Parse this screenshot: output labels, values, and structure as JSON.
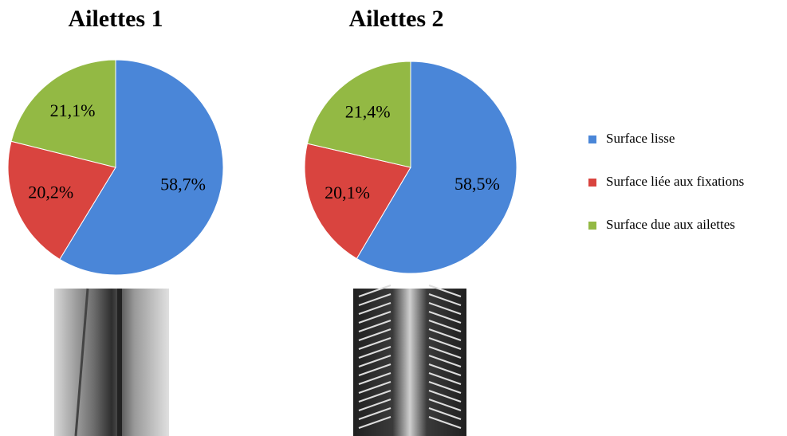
{
  "chart_data": [
    {
      "type": "pie",
      "title": "Ailettes 1",
      "categories": [
        "Surface lisse",
        "Surface liée aux fixations",
        "Surface due aux ailettes"
      ],
      "values": [
        58.7,
        20.2,
        21.1
      ],
      "value_labels": [
        "58,7%",
        "20,2%",
        "21,1%"
      ],
      "colors": [
        "#4a86d8",
        "#d9443f",
        "#93b944"
      ]
    },
    {
      "type": "pie",
      "title": "Ailettes 2",
      "categories": [
        "Surface lisse",
        "Surface liée aux fixations",
        "Surface due aux ailettes"
      ],
      "values": [
        58.5,
        20.1,
        21.4
      ],
      "value_labels": [
        "58,5%",
        "20,1%",
        "21,4%"
      ],
      "colors": [
        "#4a86d8",
        "#d9443f",
        "#93b944"
      ]
    }
  ]
}
